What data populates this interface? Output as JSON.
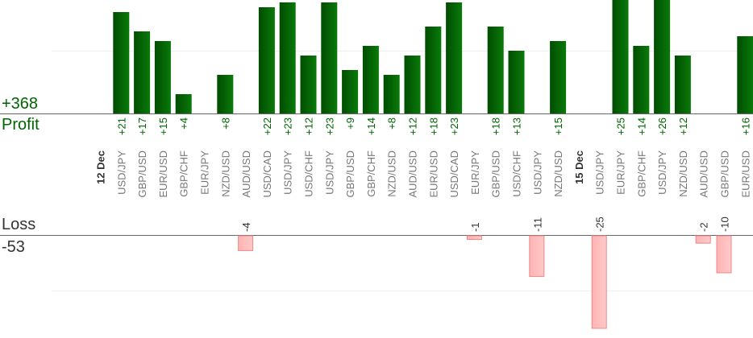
{
  "summary": {
    "total_profit": "+368",
    "profit_label": "Profit",
    "loss_label": "Loss",
    "total_loss": "-53"
  },
  "colors": {
    "profit_bar_dark": "#004d00",
    "profit_bar_light": "#0a7a0a",
    "profit_text": "#006400",
    "loss_bar_fill": "#ffb3b3",
    "loss_bar_edge": "#ee8888",
    "loss_text": "#333333",
    "category_text": "#777777",
    "date_text": "#333333"
  },
  "chart_data": {
    "type": "bar",
    "title": "",
    "xlabel": "",
    "ylabel": "",
    "grid": true,
    "categories": [
      {
        "label": "12 Dec",
        "kind": "date"
      },
      {
        "label": "USD/JPY"
      },
      {
        "label": "GBP/USD"
      },
      {
        "label": "EUR/USD"
      },
      {
        "label": "GBP/CHF"
      },
      {
        "label": "EUR/JPY"
      },
      {
        "label": "NZD/USD"
      },
      {
        "label": "AUD/USD"
      },
      {
        "label": "USD/CAD"
      },
      {
        "label": "USD/JPY"
      },
      {
        "label": "USD/CHF"
      },
      {
        "label": "USD/JPY"
      },
      {
        "label": "GBP/USD"
      },
      {
        "label": "GBP/CHF"
      },
      {
        "label": "NZD/USD"
      },
      {
        "label": "AUD/USD"
      },
      {
        "label": "EUR/USD"
      },
      {
        "label": "USD/CAD"
      },
      {
        "label": "EUR/JPY"
      },
      {
        "label": "GBP/USD"
      },
      {
        "label": "USD/CHF"
      },
      {
        "label": "USD/JPY"
      },
      {
        "label": "NZD/USD"
      },
      {
        "label": "15 Dec",
        "kind": "date"
      },
      {
        "label": "USD/JPY"
      },
      {
        "label": "EUR/JPY"
      },
      {
        "label": "GBP/CHF"
      },
      {
        "label": "USD/JPY"
      },
      {
        "label": "NZD/USD"
      },
      {
        "label": "AUD/USD"
      },
      {
        "label": "GBP/USD"
      },
      {
        "label": "EUR/USD"
      }
    ],
    "values": [
      null,
      21,
      17,
      15,
      4,
      null,
      8,
      -4,
      22,
      23,
      12,
      23,
      9,
      14,
      8,
      12,
      18,
      23,
      -1,
      18,
      13,
      -11,
      15,
      null,
      -25,
      25,
      14,
      26,
      12,
      -2,
      -10,
      16
    ],
    "value_labels": [
      "",
      "+21",
      "+17",
      "+15",
      "+4",
      "",
      "+8",
      "-4",
      "+22",
      "+23",
      "+12",
      "+23",
      "+9",
      "+14",
      "+8",
      "+12",
      "+18",
      "+23",
      "-1",
      "+18",
      "+13",
      "-11",
      "+15",
      "",
      "-25",
      "+25",
      "+14",
      "+26",
      "+12",
      "-2",
      "-10",
      "+16"
    ]
  }
}
